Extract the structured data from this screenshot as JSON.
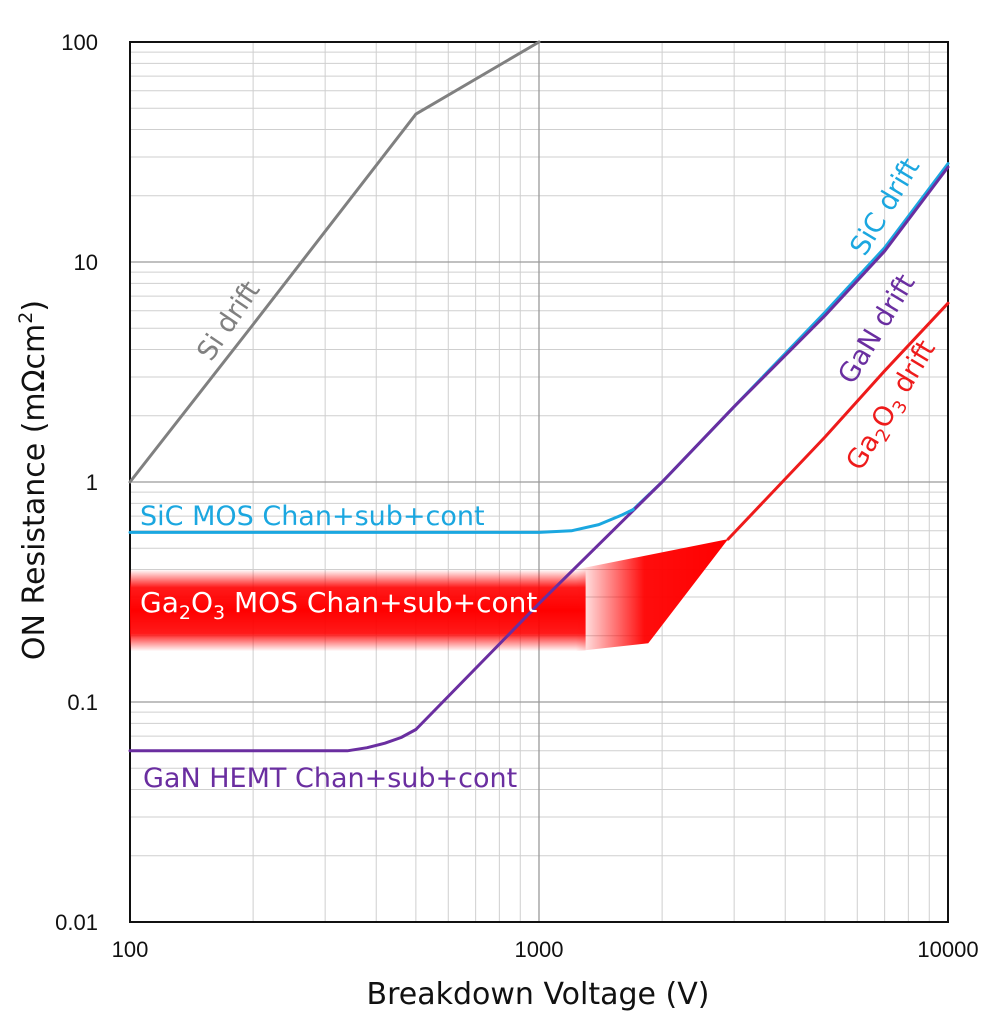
{
  "chart_data": {
    "type": "line",
    "title": "",
    "xlabel": "Breakdown Voltage (V)",
    "ylabel_prefix": "ON Resistance (mΩcm",
    "ylabel_sup": "2",
    "ylabel_suffix": ")",
    "x_scale": "log",
    "y_scale": "log",
    "xlim": [
      100,
      10000
    ],
    "ylim": [
      0.01,
      100
    ],
    "grid": true,
    "x_ticks": [
      {
        "value": 100,
        "label": "100"
      },
      {
        "value": 1000,
        "label": "1000"
      },
      {
        "value": 10000,
        "label": "10000"
      }
    ],
    "y_ticks": [
      {
        "value": 100,
        "label": "100"
      },
      {
        "value": 10,
        "label": "10"
      },
      {
        "value": 1,
        "label": "1"
      },
      {
        "value": 0.1,
        "label": "0.1"
      },
      {
        "value": 0.01,
        "label": "0.01"
      }
    ],
    "series": [
      {
        "name": "Si drift",
        "color": "#808080",
        "x": [
          100,
          200,
          500,
          1000
        ],
        "y": [
          1.0,
          5.2,
          47,
          100
        ]
      },
      {
        "name": "SiC drift",
        "color": "#1BA7E0",
        "x": [
          1700,
          2000,
          3000,
          5000,
          7000,
          10000
        ],
        "y": [
          0.75,
          1.0,
          2.2,
          5.9,
          11.6,
          28
        ]
      },
      {
        "name": "GaN drift",
        "color": "#6A2EA0",
        "x": [
          500,
          1000,
          2000,
          3000,
          5000,
          7000,
          10000
        ],
        "y": [
          0.075,
          0.28,
          1.0,
          2.2,
          5.7,
          11.2,
          27
        ]
      },
      {
        "name": "Ga2O3 drift",
        "color": "#EE1B1B",
        "x": [
          2900,
          5000,
          7000,
          10000
        ],
        "y": [
          0.55,
          1.6,
          3.2,
          6.5
        ]
      },
      {
        "name": "SiC MOS Chan+sub+cont",
        "color": "#1BA7E0",
        "x": [
          100,
          200,
          500,
          1000,
          1200,
          1400,
          1600,
          1700
        ],
        "y": [
          0.59,
          0.59,
          0.59,
          0.59,
          0.6,
          0.64,
          0.71,
          0.75
        ]
      },
      {
        "name": "GaN HEMT Chan+sub+cont",
        "color": "#6A2EA0",
        "x": [
          100,
          200,
          340,
          380,
          420,
          460,
          500
        ],
        "y": [
          0.06,
          0.06,
          0.06,
          0.062,
          0.065,
          0.069,
          0.075
        ]
      }
    ],
    "labels": {
      "si_drift": "Si drift",
      "sic_drift": "SiC drift",
      "gan_drift": "GaN drift",
      "ga2o3_drift_pre": "Ga",
      "ga2o3_drift_sub1": "2",
      "ga2o3_drift_mid": "O",
      "ga2o3_drift_sub2": "3",
      "ga2o3_drift_post": " drift",
      "sic_mos": "SiC MOS Chan+sub+cont",
      "gan_hemt": "GaN HEMT Chan+sub+cont",
      "ga2o3_mos_pre": "Ga",
      "ga2o3_mos_sub1": "2",
      "ga2o3_mos_mid": "O",
      "ga2o3_mos_sub2": "3",
      "ga2o3_mos_post": " MOS Chan+sub+cont"
    },
    "ga2o3_mos_band": {
      "color": "#FF0000",
      "y_range": [
        0.17,
        0.4
      ],
      "meets_drift_at": {
        "x": 2900,
        "y": 0.55
      }
    }
  }
}
